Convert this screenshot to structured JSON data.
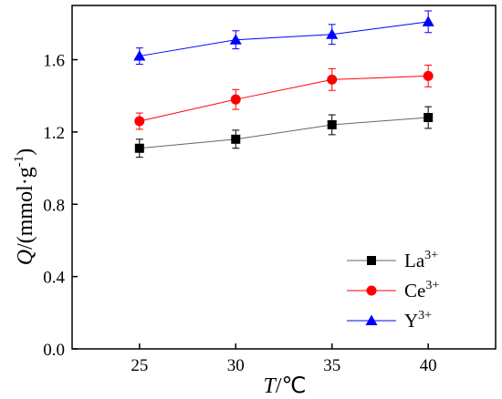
{
  "chart_data": {
    "type": "line",
    "x": [
      25,
      30,
      35,
      40
    ],
    "xlim": [
      21.5,
      43.5
    ],
    "ylim": [
      0.0,
      1.9
    ],
    "xticks": [
      "25",
      "30",
      "35",
      "40"
    ],
    "yticks": [
      "0.0",
      "0.4",
      "0.8",
      "1.2",
      "1.6"
    ],
    "xlabel": {
      "italic": "T",
      "rest": "/℃"
    },
    "ylabel": {
      "italic": "Q",
      "rest": "/(mmol·g",
      "sup": "-1",
      "close": ")"
    },
    "grid": false,
    "legend_position": "bottom-right",
    "series": [
      {
        "name": "La",
        "sup": "3+",
        "values": [
          1.11,
          1.16,
          1.24,
          1.28
        ],
        "errors": [
          0.05,
          0.05,
          0.055,
          0.06
        ],
        "marker": "square",
        "color": "#000000",
        "line_color": "#666666"
      },
      {
        "name": "Ce",
        "sup": "3+",
        "values": [
          1.26,
          1.38,
          1.49,
          1.51
        ],
        "errors": [
          0.045,
          0.055,
          0.06,
          0.06
        ],
        "marker": "circle",
        "color": "#ff0000",
        "line_color": "#ff0000"
      },
      {
        "name": "Y",
        "sup": "3+",
        "values": [
          1.62,
          1.71,
          1.74,
          1.81
        ],
        "errors": [
          0.045,
          0.05,
          0.055,
          0.06
        ],
        "marker": "triangle",
        "color": "#0000ff",
        "line_color": "#0000ff"
      }
    ]
  }
}
